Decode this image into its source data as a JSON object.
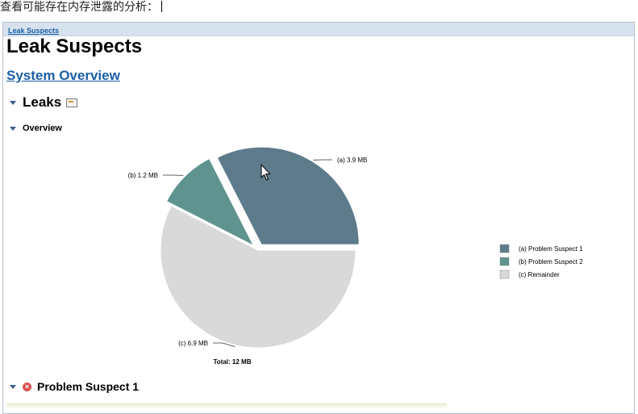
{
  "caption": "查看可能存在内存泄露的分析：",
  "breadcrumb": "Leak Suspects",
  "title": "Leak Suspects",
  "overview_link": "System Overview",
  "sections": {
    "leaks": "Leaks",
    "overview": "Overview",
    "suspect1": "Problem Suspect 1"
  },
  "icons": {
    "leaks_report": "report-icon",
    "suspect_status": "error-icon"
  },
  "colors": {
    "slice_a": "#5e7b8c",
    "slice_b": "#5f9390",
    "slice_c": "#d9d9d9",
    "link": "#1a5ea8"
  },
  "chart_data": {
    "type": "pie",
    "total_label": "Total: 12 MB",
    "slices": [
      {
        "id": "a",
        "label": "(a)  3.9 MB",
        "value": 3.9,
        "legend": "(a)  Problem Suspect 1",
        "exploded": true
      },
      {
        "id": "b",
        "label": "(b)  1.2 MB",
        "value": 1.2,
        "legend": "(b)  Problem Suspect 2",
        "exploded": true
      },
      {
        "id": "c",
        "label": "(c)  6.9 MB",
        "value": 6.9,
        "legend": "(c)  Remainder",
        "exploded": false
      }
    ]
  }
}
